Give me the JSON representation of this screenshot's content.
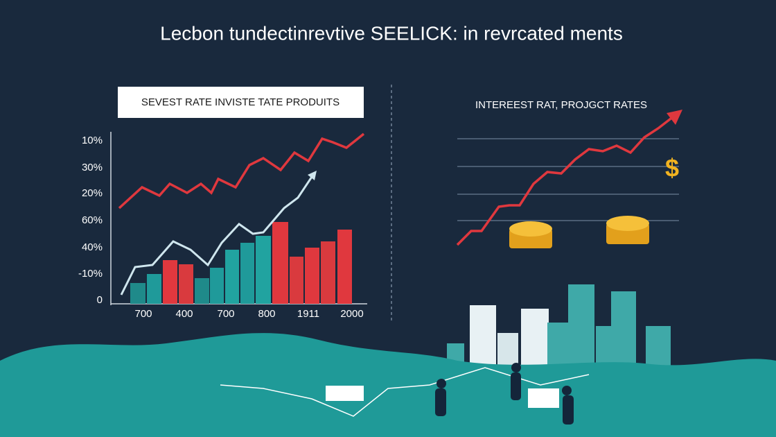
{
  "title": "Lecbon tundectinrevtive SEELICK: in revrcated ments",
  "left_chart": {
    "title": "SEVEST RATE INVISTE TATE PRODUITS",
    "y_labels": [
      "10%",
      "30%",
      "20%",
      "60%",
      "40%",
      "-10%",
      "0"
    ],
    "x_labels": [
      "700",
      "400",
      "700",
      "800",
      "1911",
      "2000"
    ]
  },
  "right_chart": {
    "title": "INTEREEST RAT, PROJGCT RATES",
    "icon": "$"
  }
}
